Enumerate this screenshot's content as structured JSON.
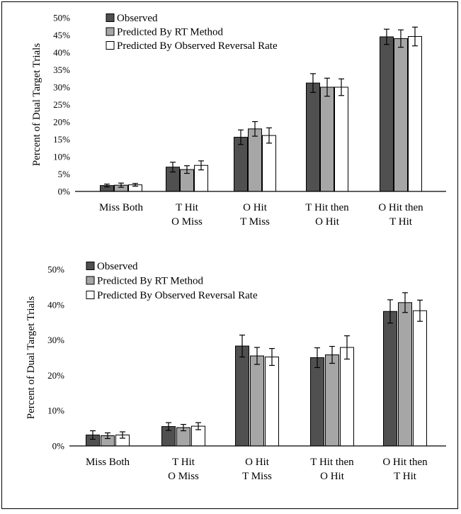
{
  "colors": {
    "observed": "#505050",
    "rt": "#a6a6a6",
    "reversal": "#ffffff",
    "axis": "#000000",
    "frame": "#000000"
  },
  "chart_data": [
    {
      "type": "bar",
      "title": "",
      "xlabel": "",
      "ylabel": "Percent of  Dual  Target Trials",
      "ylim": [
        0,
        50
      ],
      "yticks": [
        0,
        5,
        10,
        15,
        20,
        25,
        30,
        35,
        40,
        45,
        50
      ],
      "ytick_labels": [
        "0%",
        "5%",
        "10%",
        "15%",
        "20%",
        "25%",
        "30%",
        "35%",
        "40%",
        "45%",
        "50%"
      ],
      "legend_position": "top-left",
      "categories": [
        [
          "Miss Both"
        ],
        [
          "T Hit",
          "O Miss"
        ],
        [
          "O Hit",
          "T Miss"
        ],
        [
          "T Hit then",
          "O Hit"
        ],
        [
          "O Hit then",
          "T Hit"
        ]
      ],
      "series": [
        {
          "name": "Observed",
          "color_key": "observed",
          "values": [
            1.7,
            7.0,
            15.6,
            31.2,
            44.5
          ],
          "errors": [
            0.4,
            1.4,
            2.1,
            2.7,
            2.2
          ]
        },
        {
          "name": "Predicted By RT Method",
          "color_key": "rt",
          "values": [
            1.8,
            6.3,
            18.0,
            30.0,
            44.0
          ],
          "errors": [
            0.6,
            1.1,
            2.1,
            2.6,
            2.5
          ]
        },
        {
          "name": "Predicted By Observed Reversal Rate",
          "color_key": "reversal",
          "values": [
            1.9,
            7.5,
            16.1,
            30.0,
            44.6
          ],
          "errors": [
            0.4,
            1.3,
            2.2,
            2.4,
            2.7
          ]
        }
      ]
    },
    {
      "type": "bar",
      "title": "",
      "xlabel": "",
      "ylabel": "Percent of Dual Target Trials",
      "ylim": [
        0,
        50
      ],
      "yticks": [
        0,
        10,
        20,
        30,
        40,
        50
      ],
      "ytick_labels": [
        "0%",
        "10%",
        "20%",
        "30%",
        "40%",
        "50%"
      ],
      "legend_position": "top-left",
      "categories": [
        [
          "Miss Both"
        ],
        [
          "T Hit",
          "O Miss"
        ],
        [
          "O Hit",
          "T Miss"
        ],
        [
          "T Hit then",
          "O Hit"
        ],
        [
          "O Hit then",
          "T Hit"
        ]
      ],
      "series": [
        {
          "name": "Observed",
          "color_key": "observed",
          "values": [
            3.1,
            5.5,
            28.3,
            25.0,
            38.1
          ],
          "errors": [
            1.2,
            1.1,
            3.1,
            2.8,
            3.3
          ]
        },
        {
          "name": "Predicted By RT Method",
          "color_key": "rt",
          "values": [
            2.9,
            5.2,
            25.5,
            25.8,
            40.6
          ],
          "errors": [
            0.8,
            0.9,
            2.4,
            2.4,
            2.8
          ]
        },
        {
          "name": "Predicted By Observed Reversal Rate",
          "color_key": "reversal",
          "values": [
            3.1,
            5.6,
            25.2,
            27.9,
            38.3
          ],
          "errors": [
            0.9,
            1.0,
            2.4,
            3.3,
            3.0
          ]
        }
      ]
    }
  ]
}
